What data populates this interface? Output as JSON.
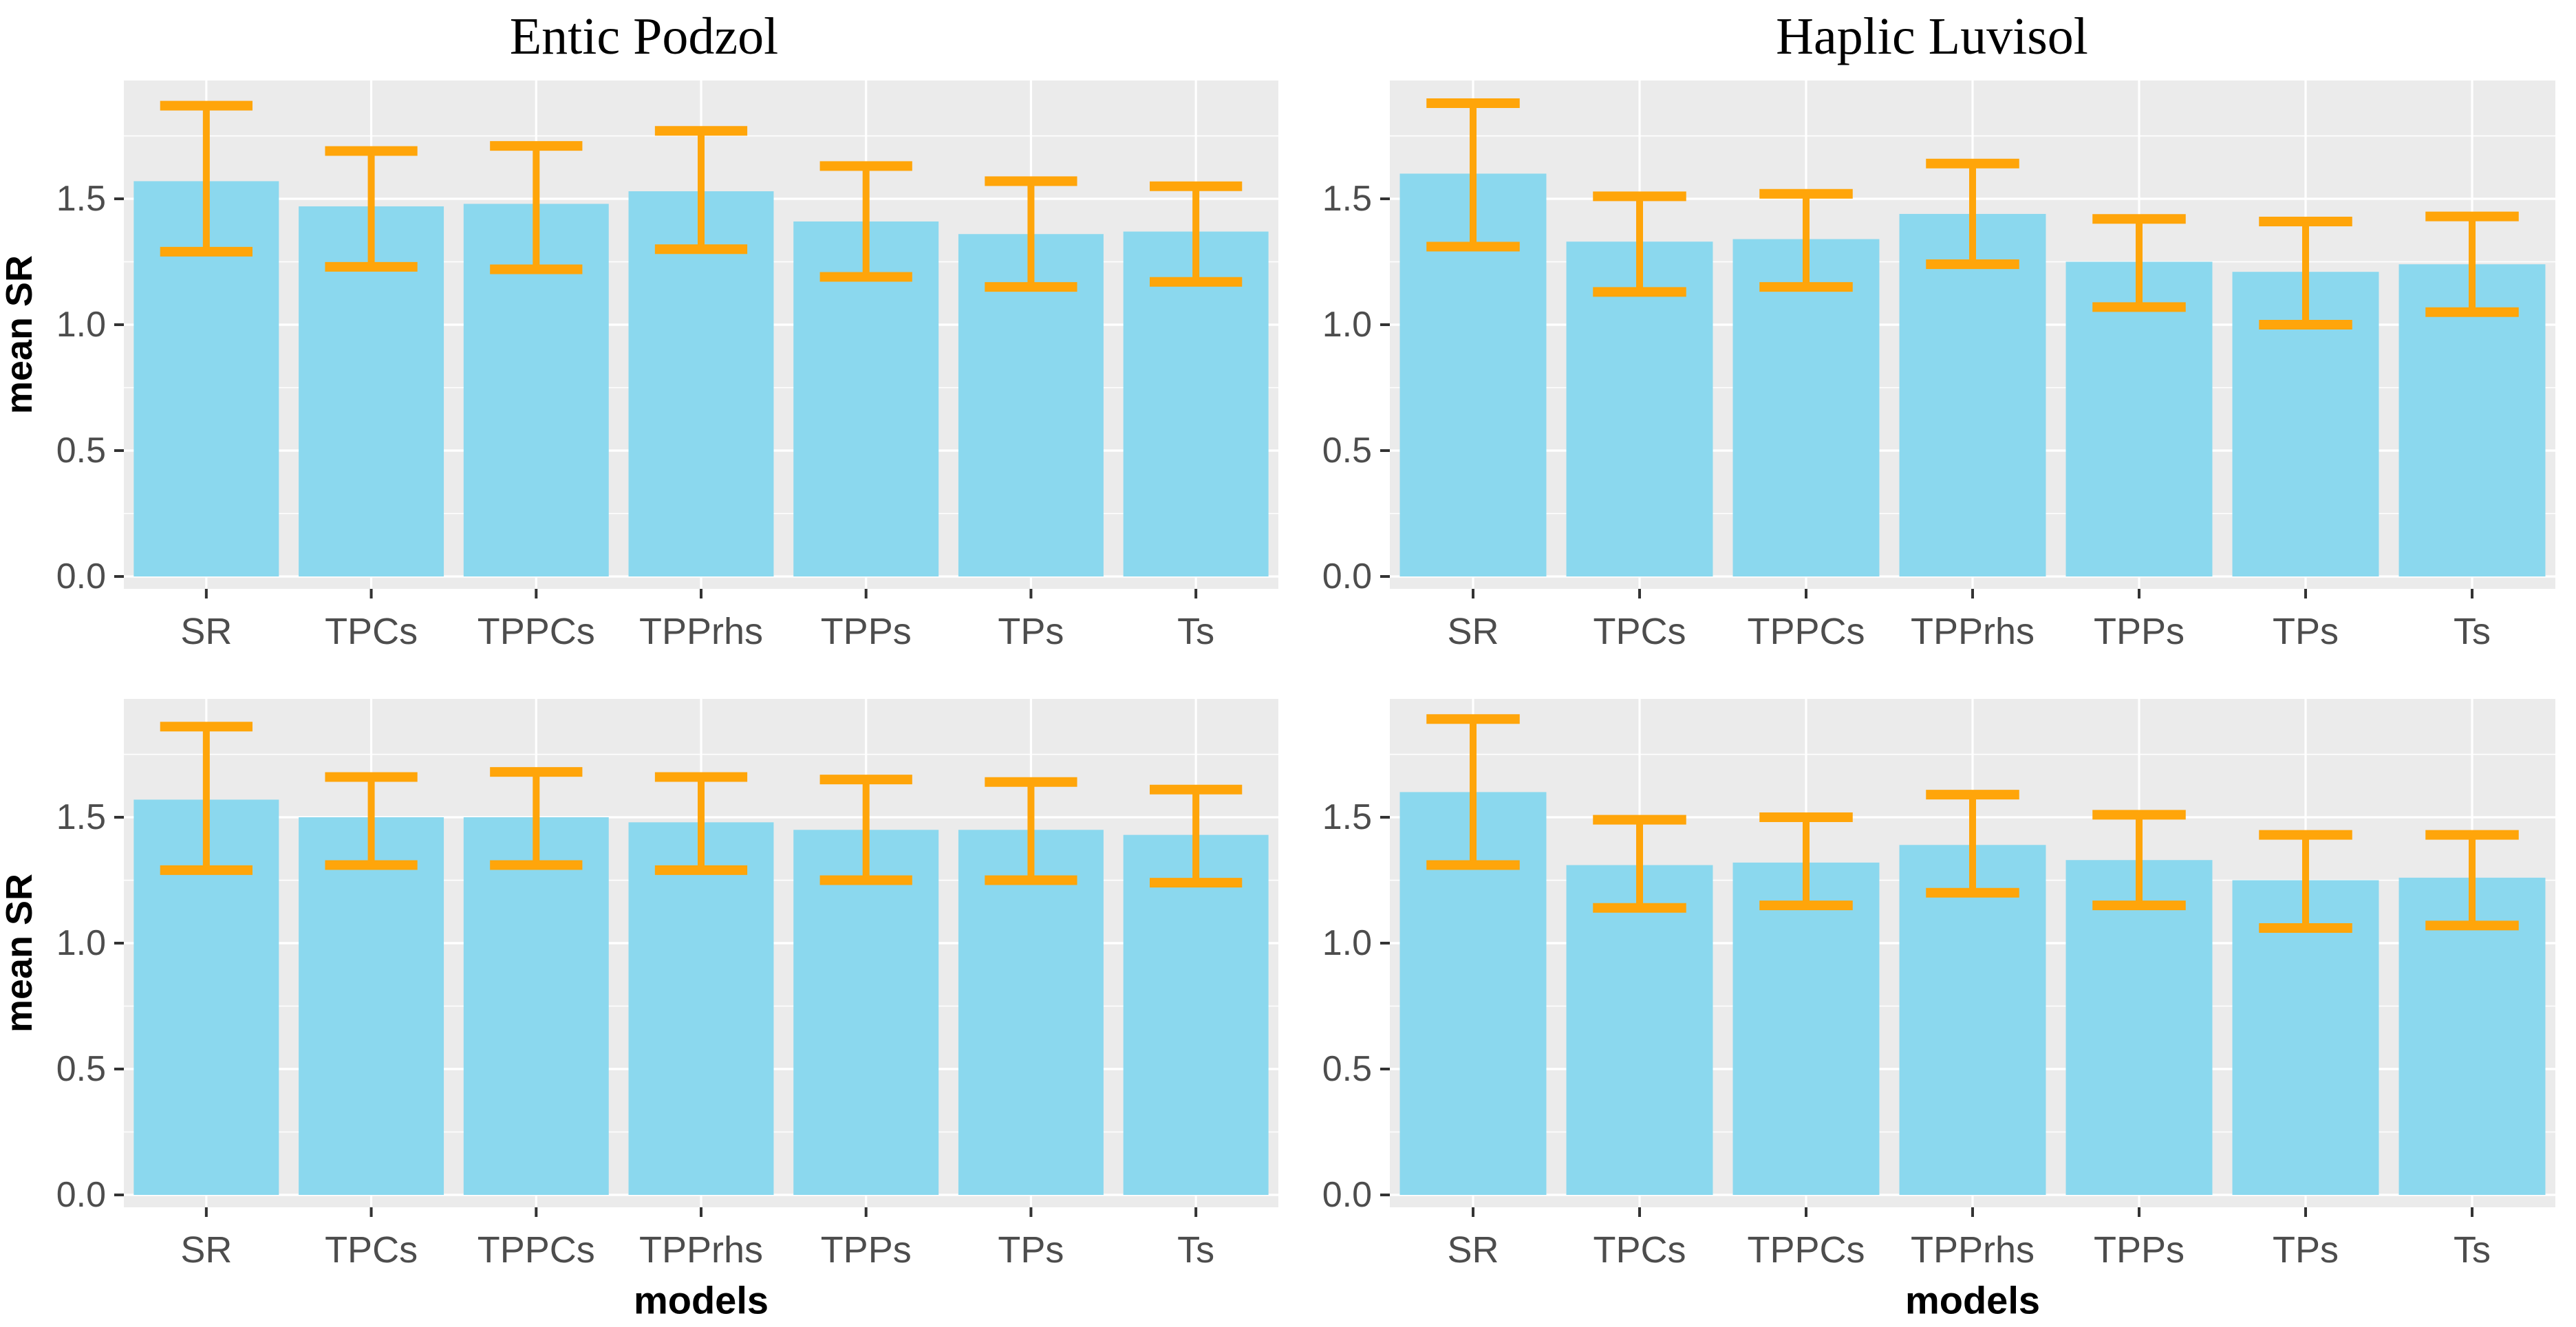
{
  "style": {
    "bar_color": "#8BD8EE",
    "error_color": "#FFA50A",
    "panel_background": "#EBEBEB",
    "grid_color": "#FFFFFF",
    "tick_label_color": "#4D4D4D",
    "tick_mark_color": "#333333",
    "axis_title_color": "#000000",
    "title_color": "#000000"
  },
  "axis": {
    "ytick_values": [
      0,
      0.5,
      1.0,
      1.5
    ],
    "ytick_labels": [
      "0.0",
      "0.5",
      "1.0",
      "1.5"
    ],
    "yminor_values": [
      0.25,
      0.75,
      1.25,
      1.75
    ],
    "ylim": [
      0,
      1.97
    ]
  },
  "chart_data": [
    {
      "id": "entic-podzol-top",
      "type": "bar",
      "title": "Entic Podzol",
      "ylabel": "mean SR",
      "xlabel": "",
      "categories": [
        "SR",
        "TPCs",
        "TPPCs",
        "TPPrhs",
        "TPPs",
        "TPs",
        "Ts"
      ],
      "values": [
        1.57,
        1.47,
        1.48,
        1.53,
        1.41,
        1.36,
        1.37
      ],
      "error_low": [
        1.29,
        1.23,
        1.22,
        1.3,
        1.19,
        1.15,
        1.17
      ],
      "error_high": [
        1.87,
        1.69,
        1.71,
        1.77,
        1.63,
        1.57,
        1.55
      ]
    },
    {
      "id": "haplic-luvisol-top",
      "type": "bar",
      "title": "Haplic Luvisol",
      "ylabel": "",
      "xlabel": "",
      "categories": [
        "SR",
        "TPCs",
        "TPPCs",
        "TPPrhs",
        "TPPs",
        "TPs",
        "Ts"
      ],
      "values": [
        1.6,
        1.33,
        1.34,
        1.44,
        1.25,
        1.21,
        1.24
      ],
      "error_low": [
        1.31,
        1.13,
        1.15,
        1.24,
        1.07,
        1.0,
        1.05
      ],
      "error_high": [
        1.88,
        1.51,
        1.52,
        1.64,
        1.42,
        1.41,
        1.43
      ]
    },
    {
      "id": "entic-podzol-bottom",
      "type": "bar",
      "title": "",
      "ylabel": "mean SR",
      "xlabel": "models",
      "categories": [
        "SR",
        "TPCs",
        "TPPCs",
        "TPPrhs",
        "TPPs",
        "TPs",
        "Ts"
      ],
      "values": [
        1.57,
        1.5,
        1.5,
        1.48,
        1.45,
        1.45,
        1.43
      ],
      "error_low": [
        1.29,
        1.31,
        1.31,
        1.29,
        1.25,
        1.25,
        1.24
      ],
      "error_high": [
        1.86,
        1.66,
        1.68,
        1.66,
        1.65,
        1.64,
        1.61
      ]
    },
    {
      "id": "haplic-luvisol-bottom",
      "type": "bar",
      "title": "",
      "ylabel": "",
      "xlabel": "models",
      "categories": [
        "SR",
        "TPCs",
        "TPPCs",
        "TPPrhs",
        "TPPs",
        "TPs",
        "Ts"
      ],
      "values": [
        1.6,
        1.31,
        1.32,
        1.39,
        1.33,
        1.25,
        1.26
      ],
      "error_low": [
        1.31,
        1.14,
        1.15,
        1.2,
        1.15,
        1.06,
        1.07
      ],
      "error_high": [
        1.89,
        1.49,
        1.5,
        1.59,
        1.51,
        1.43,
        1.43
      ]
    }
  ]
}
